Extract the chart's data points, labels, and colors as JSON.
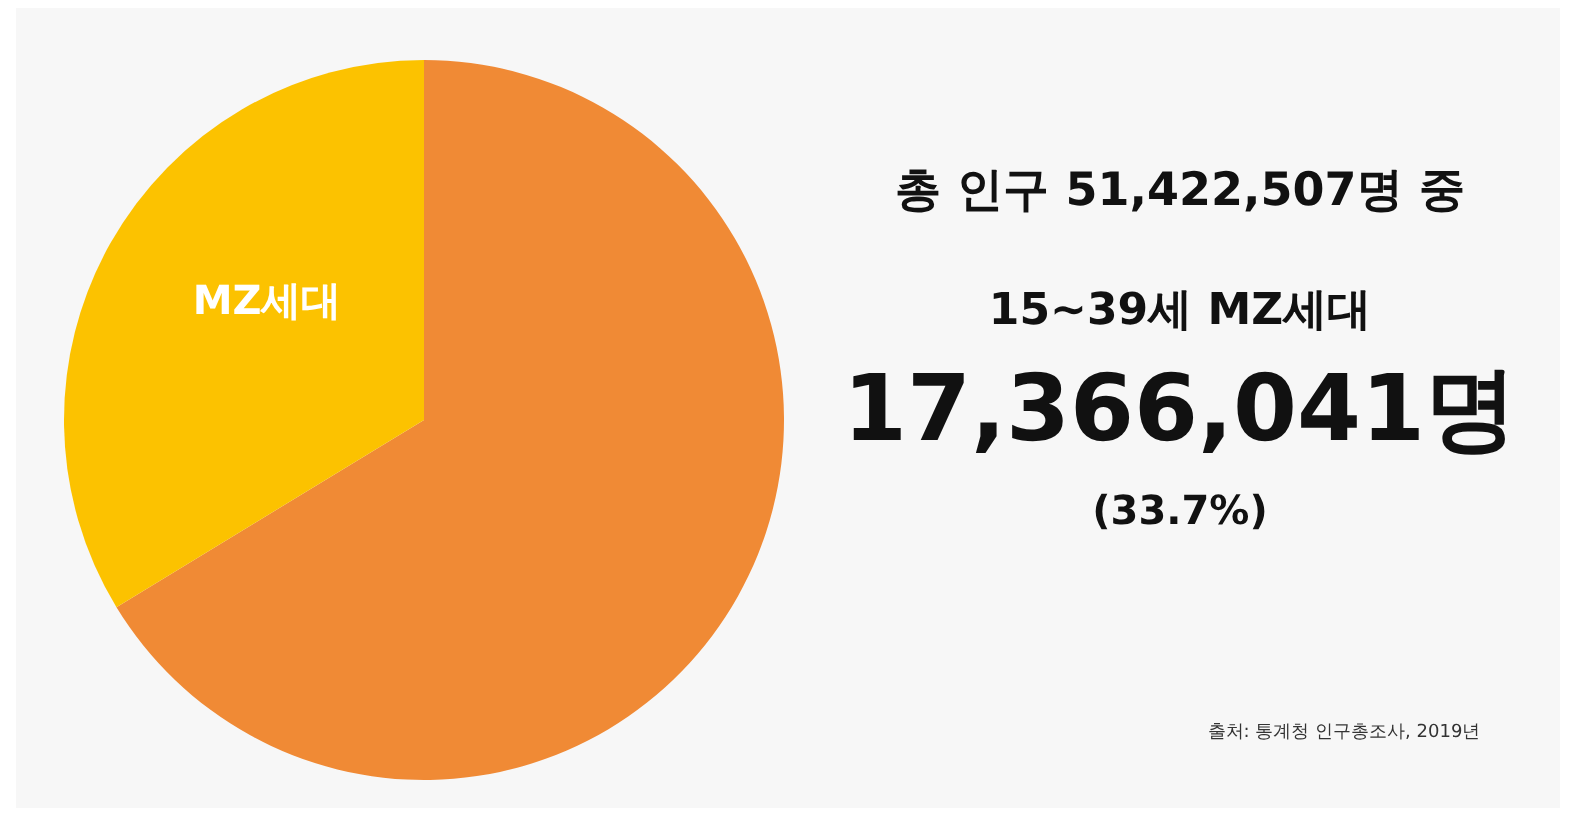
{
  "chart_data": {
    "type": "pie",
    "categories": [
      null,
      "MZ세대"
    ],
    "values": [
      66.3,
      33.7
    ],
    "colors": [
      "#f08a35",
      "#fcc200"
    ],
    "legend": false,
    "annotations": [
      "총 인구 51,422,507명 중",
      "15~39세 MZ세대",
      "17,366,041명",
      "(33.7%)",
      "출처: 통계청 인구총조사, 2019년"
    ]
  }
}
